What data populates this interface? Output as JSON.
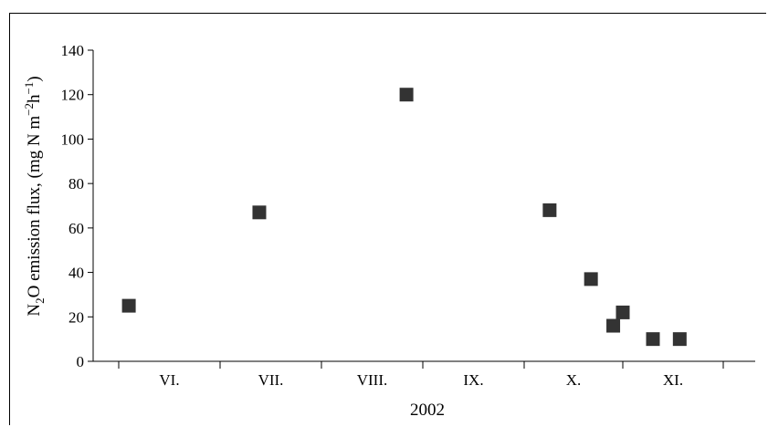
{
  "chart_data": {
    "type": "scatter",
    "title": "",
    "xlabel": "2002",
    "ylabel_parts": {
      "a": "N",
      "sub1": "2",
      "b": "O emission flux, (mg N m",
      "sup1": "−2",
      "c": "h",
      "sup2": "−1",
      "d": ")"
    },
    "ylim": [
      0,
      140
    ],
    "yticks": [
      "0",
      "20",
      "40",
      "60",
      "80",
      "100",
      "120",
      "140"
    ],
    "xcategories": [
      "VI.",
      "VII.",
      "VIII.",
      "IX.",
      "X.",
      "XI."
    ],
    "grid": false,
    "legend": "none",
    "marker_color": "#333333",
    "series": [
      {
        "points": [
          {
            "month": "VI.",
            "day": 3,
            "y": 25
          },
          {
            "month": "VII.",
            "day": 12,
            "y": 67
          },
          {
            "month": "VIII.",
            "day": 26,
            "y": 120
          },
          {
            "month": "X.",
            "day": 8,
            "y": 68
          },
          {
            "month": "X.",
            "day": 21,
            "y": 37
          },
          {
            "month": "X.",
            "day": 28,
            "y": 16
          },
          {
            "month": "X.",
            "day": 31,
            "y": 22
          },
          {
            "month": "XI.",
            "day": 9,
            "y": 10
          },
          {
            "month": "XI.",
            "day": 17,
            "y": 10
          }
        ]
      }
    ]
  }
}
